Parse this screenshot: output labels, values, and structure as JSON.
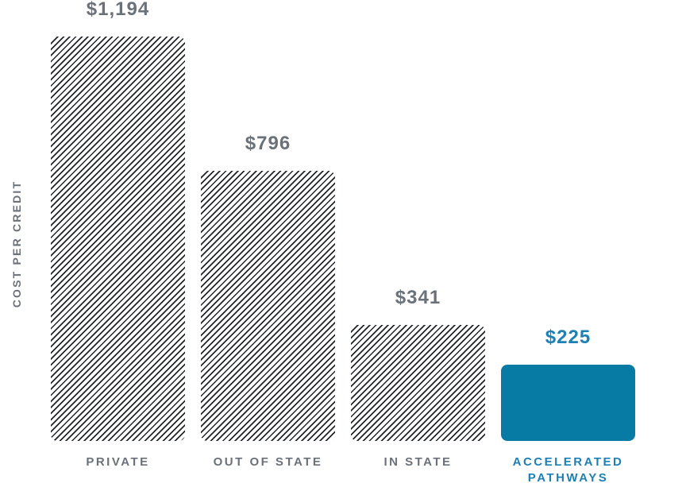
{
  "colors": {
    "background": "#ffffff",
    "hatch_line": "#22262a",
    "bar_blue": "#077ba3",
    "text_blue": "#1d80b5",
    "text_gray": "#6b7179"
  },
  "chart_data": {
    "type": "bar",
    "title": "",
    "xlabel": "",
    "ylabel": "COST PER CREDIT",
    "categories": [
      "PRIVATE",
      "OUT OF STATE",
      "IN STATE",
      "ACCELERATED PATHWAYS"
    ],
    "values": [
      1194,
      796,
      341,
      225
    ],
    "ylim": [
      0,
      1300
    ],
    "grid": false,
    "legend": false,
    "bars": [
      {
        "category": "PRIVATE",
        "value": 1194,
        "value_label": "$1,194",
        "fill": "hatched",
        "highlight": false
      },
      {
        "category": "OUT OF STATE",
        "value": 796,
        "value_label": "$796",
        "fill": "hatched",
        "highlight": false
      },
      {
        "category": "IN STATE",
        "value": 341,
        "value_label": "$341",
        "fill": "hatched",
        "highlight": false
      },
      {
        "category": "ACCELERATED PATHWAYS",
        "value": 225,
        "value_label": "$225",
        "fill": "solid",
        "highlight": true
      }
    ]
  }
}
